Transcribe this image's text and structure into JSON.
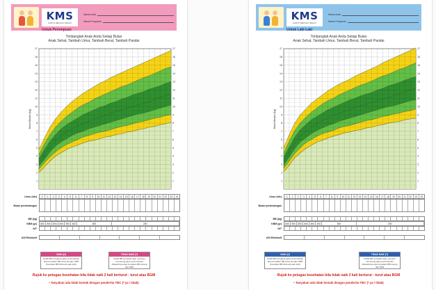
{
  "cards": [
    {
      "id": "girl",
      "theme": {
        "accent": "#f29bbd",
        "bar": "#d94787"
      },
      "logo": "KMS",
      "logo_sub": "KARTU MENUJU SEHAT",
      "sex_label": "Untuk Perempuan",
      "field_name": "Nama Anak",
      "field_posyandu": "Nama Posyandu",
      "heading_1": "Timbanglah Anak Anda Setiap Bulan",
      "heading_2": "Anak Sehat, Tambah Umur, Tambah Berat, Tambah Pandai",
      "ylabel": "Berat Badan (kg)",
      "row_age": "Umur (bln)",
      "row_month": "Bulan penimbangan",
      "row_bb": "BB (kg)",
      "row_kbm": "KBM (gr)",
      "row_nt": "N/T",
      "row_asi": "ASI Eksklusif",
      "kbm_values": [
        "800",
        "900",
        "800",
        "600",
        "500",
        "400",
        "300",
        "200"
      ],
      "legend_left_title": "NAIK (N)",
      "legend_left_text": "Grafik BB mengikuti garis pertumbuhan atau Kenaikan BB sama dengan KBM (Kenaikan BB Minimal) atau lebih",
      "legend_right_title": "TIDAK NAIK (T)",
      "legend_right_text": "Grafik BB mendatar atau menurun memotong garis pertumbuhan dibawahnya atau Kenaikan BB kurang dari KBM",
      "refer": "Rujuk ke petugas kesehatan bila tidak naik 2 kali berturut - turut atau BGM",
      "refer_2": "• Tanyakan ada tidak kontak dengan penderita TBC (* ya / tidak)"
    },
    {
      "id": "boy",
      "theme": {
        "accent": "#8fc4ea",
        "bar": "#2d5fb0"
      },
      "logo": "KMS",
      "logo_sub": "KARTU MENUJU SEHAT",
      "sex_label": "Untuk Laki-Laki",
      "field_name": "Nama Anak",
      "field_posyandu": "Nama Posyandu",
      "heading_1": "Timbanglah Anak Anda Setiap Bulan",
      "heading_2": "Anak Sehat, Tambah Umur, Tambah Berat, Tambah Pandai",
      "ylabel": "Berat Badan (kg)",
      "row_age": "Umur (bln)",
      "row_month": "Bulan penimbangan",
      "row_bb": "BB (kg)",
      "row_kbm": "KBM (gr)",
      "row_nt": "N/T",
      "row_asi": "ASI Eksklusif",
      "kbm_values": [
        "800",
        "900",
        "800",
        "600",
        "500",
        "400",
        "300",
        "200"
      ],
      "legend_left_title": "NAIK (N)",
      "legend_left_text": "Grafik BB mengikuti garis pertumbuhan atau Kenaikan BB sama dengan KBM (Kenaikan BB Minimal) atau lebih",
      "legend_right_title": "TIDAK NAIK (T)",
      "legend_right_text": "Grafik BB mendatar atau menurun memotong garis pertumbuhan dibawahnya atau Kenaikan BB kurang dari KBM",
      "refer": "Rujuk ke petugas kesehatan bila tidak naik 2 kali berturut - turut atau BGM",
      "refer_2": "• Tanyakan ada tidak kontak dengan penderita TBC (* ya / tidak)"
    }
  ],
  "chart_data": [
    {
      "type": "area",
      "x": [
        0,
        1,
        2,
        3,
        4,
        5,
        6,
        7,
        8,
        9,
        10,
        11,
        12,
        13,
        14,
        15,
        16,
        17,
        18,
        19,
        20,
        21,
        22,
        23,
        24
      ],
      "xlim": [
        0,
        24
      ],
      "ylim": [
        0,
        17
      ],
      "yticks": [
        1,
        2,
        3,
        4,
        5,
        6,
        7,
        8,
        9,
        10,
        11,
        12,
        13,
        14,
        15,
        16,
        17
      ],
      "xlabel": "Umur (bln)",
      "ylabel": "Berat Badan (kg)",
      "grid": true,
      "band_colors": {
        "outer": "#f5d316",
        "inner": "#63bf46",
        "median": "#2f8f2f",
        "floor": "#d9e9b8"
      },
      "series": [
        {
          "values": [
            2.0,
            2.7,
            3.4,
            4.0,
            4.4,
            4.8,
            5.1,
            5.3,
            5.6,
            5.8,
            5.9,
            6.1,
            6.3,
            6.4,
            6.6,
            6.7,
            6.9,
            7.0,
            7.2,
            7.3,
            7.5,
            7.6,
            7.8,
            7.9,
            8.1
          ]
        },
        {
          "values": [
            2.4,
            3.2,
            3.9,
            4.5,
            5.0,
            5.4,
            5.7,
            6.0,
            6.3,
            6.5,
            6.7,
            6.9,
            7.0,
            7.2,
            7.4,
            7.6,
            7.7,
            7.9,
            8.1,
            8.2,
            8.4,
            8.6,
            8.7,
            8.9,
            9.0
          ]
        },
        {
          "values": [
            2.8,
            3.6,
            4.5,
            5.2,
            5.7,
            6.1,
            6.5,
            6.8,
            7.0,
            7.3,
            7.5,
            7.7,
            7.9,
            8.1,
            8.3,
            8.5,
            8.7,
            8.9,
            9.1,
            9.2,
            9.4,
            9.6,
            9.8,
            10.0,
            10.2
          ]
        },
        {
          "values": [
            3.2,
            4.2,
            5.1,
            5.8,
            6.4,
            6.9,
            7.3,
            7.6,
            7.9,
            8.2,
            8.5,
            8.7,
            8.9,
            9.2,
            9.4,
            9.6,
            9.8,
            10.0,
            10.2,
            10.4,
            10.6,
            10.9,
            11.1,
            11.3,
            11.5
          ]
        },
        {
          "values": [
            3.7,
            4.8,
            5.8,
            6.6,
            7.3,
            7.8,
            8.2,
            8.6,
            9.0,
            9.3,
            9.6,
            9.9,
            10.1,
            10.4,
            10.6,
            10.9,
            11.1,
            11.4,
            11.6,
            11.8,
            12.1,
            12.3,
            12.5,
            12.8,
            13.0
          ]
        },
        {
          "values": [
            4.2,
            5.5,
            6.6,
            7.5,
            8.2,
            8.8,
            9.3,
            9.8,
            10.2,
            10.5,
            10.9,
            11.2,
            11.5,
            11.8,
            12.1,
            12.4,
            12.6,
            12.9,
            13.2,
            13.5,
            13.7,
            14.0,
            14.3,
            14.6,
            14.8
          ]
        },
        {
          "values": [
            4.8,
            6.2,
            7.5,
            8.5,
            9.3,
            10.0,
            10.6,
            11.1,
            11.6,
            12.0,
            12.4,
            12.8,
            13.1,
            13.5,
            13.8,
            14.1,
            14.4,
            14.7,
            15.0,
            15.3,
            15.6,
            15.9,
            16.2,
            16.5,
            16.8
          ]
        }
      ]
    },
    {
      "type": "area",
      "x": [
        0,
        1,
        2,
        3,
        4,
        5,
        6,
        7,
        8,
        9,
        10,
        11,
        12,
        13,
        14,
        15,
        16,
        17,
        18,
        19,
        20,
        21,
        22,
        23,
        24
      ],
      "xlim": [
        0,
        24
      ],
      "ylim": [
        0,
        17
      ],
      "yticks": [
        1,
        2,
        3,
        4,
        5,
        6,
        7,
        8,
        9,
        10,
        11,
        12,
        13,
        14,
        15,
        16,
        17
      ],
      "xlabel": "Umur (bln)",
      "ylabel": "Berat Badan (kg)",
      "grid": true,
      "band_colors": {
        "outer": "#f5d316",
        "inner": "#63bf46",
        "median": "#2f8f2f",
        "floor": "#d9e9b8"
      },
      "series": [
        {
          "values": [
            2.1,
            2.9,
            3.8,
            4.4,
            4.9,
            5.3,
            5.7,
            5.9,
            6.2,
            6.4,
            6.6,
            6.8,
            6.9,
            7.1,
            7.2,
            7.4,
            7.5,
            7.7,
            7.8,
            8.0,
            8.1,
            8.2,
            8.4,
            8.5,
            8.6
          ]
        },
        {
          "values": [
            2.5,
            3.4,
            4.3,
            5.0,
            5.6,
            6.0,
            6.4,
            6.7,
            6.9,
            7.1,
            7.4,
            7.6,
            7.7,
            7.9,
            8.1,
            8.3,
            8.4,
            8.6,
            8.8,
            8.9,
            9.1,
            9.2,
            9.4,
            9.5,
            9.7
          ]
        },
        {
          "values": [
            2.9,
            3.9,
            4.9,
            5.7,
            6.2,
            6.7,
            7.1,
            7.4,
            7.7,
            7.9,
            8.2,
            8.4,
            8.6,
            8.8,
            9.0,
            9.2,
            9.4,
            9.6,
            9.8,
            10.0,
            10.1,
            10.3,
            10.5,
            10.7,
            10.8
          ]
        },
        {
          "values": [
            3.3,
            4.5,
            5.6,
            6.4,
            7.0,
            7.5,
            7.9,
            8.3,
            8.6,
            8.9,
            9.2,
            9.4,
            9.6,
            9.9,
            10.1,
            10.3,
            10.5,
            10.7,
            10.9,
            11.1,
            11.3,
            11.5,
            11.8,
            12.0,
            12.2
          ]
        },
        {
          "values": [
            3.9,
            5.1,
            6.3,
            7.2,
            7.8,
            8.4,
            8.8,
            9.2,
            9.6,
            9.9,
            10.2,
            10.5,
            10.8,
            11.0,
            11.3,
            11.5,
            11.7,
            12.0,
            12.2,
            12.5,
            12.7,
            12.9,
            13.2,
            13.4,
            13.6
          ]
        },
        {
          "values": [
            4.4,
            5.8,
            7.1,
            8.0,
            8.7,
            9.3,
            9.8,
            10.3,
            10.7,
            11.0,
            11.4,
            11.7,
            12.0,
            12.3,
            12.6,
            12.8,
            13.1,
            13.4,
            13.7,
            13.9,
            14.2,
            14.5,
            14.7,
            15.0,
            15.3
          ]
        },
        {
          "values": [
            5.0,
            6.6,
            8.0,
            9.0,
            9.7,
            10.4,
            10.9,
            11.4,
            11.9,
            12.3,
            12.7,
            13.0,
            13.3,
            13.7,
            14.0,
            14.3,
            14.6,
            14.9,
            15.3,
            15.6,
            15.9,
            16.2,
            16.5,
            16.8,
            17.1
          ]
        }
      ]
    }
  ]
}
